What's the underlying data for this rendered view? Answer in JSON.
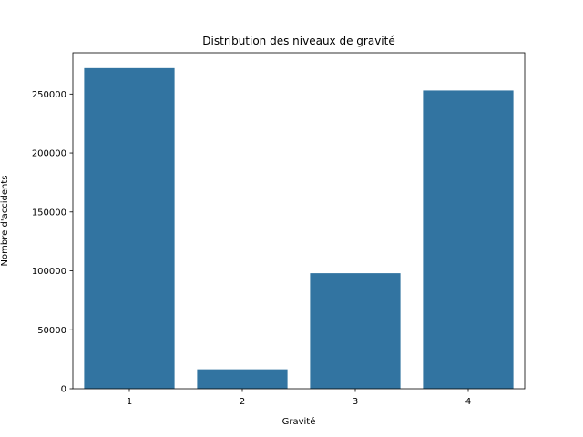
{
  "chart_data": {
    "type": "bar",
    "title": "Distribution des niveaux de gravité",
    "xlabel": "Gravité",
    "ylabel": "Nombre d'accidents",
    "categories": [
      "1",
      "2",
      "3",
      "4"
    ],
    "values": [
      272000,
      16500,
      98000,
      253000
    ],
    "ylim": [
      0,
      285000
    ],
    "yticks": [
      0,
      50000,
      100000,
      150000,
      200000,
      250000
    ],
    "ytick_labels": [
      "0",
      "50000",
      "100000",
      "150000",
      "200000",
      "250000"
    ],
    "grid": false,
    "bar_color": "#3274a1"
  }
}
